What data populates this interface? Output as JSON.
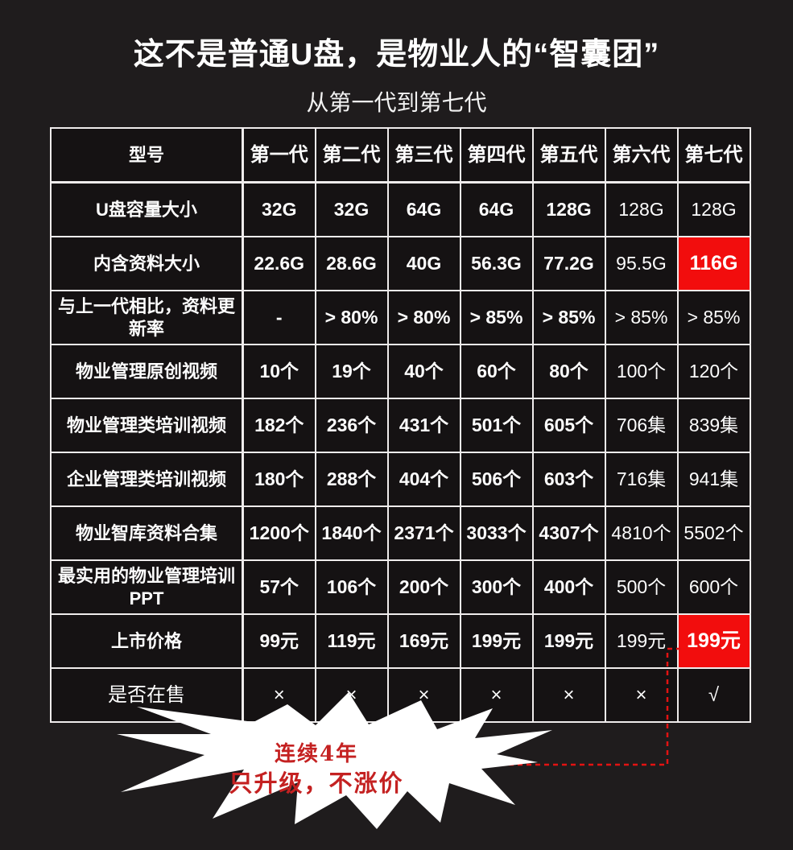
{
  "chart_data": {
    "type": "table",
    "title": "这不是普通U盘，是物业人的“智囊团”",
    "subtitle": "从第一代到第七代",
    "columns": [
      "型号",
      "第一代",
      "第二代",
      "第三代",
      "第四代",
      "第五代",
      "第六代",
      "第七代"
    ],
    "rows": [
      {
        "label": "U盘容量大小",
        "values": [
          "32G",
          "32G",
          "64G",
          "64G",
          "128G",
          "128G",
          "128G"
        ]
      },
      {
        "label": "内含资料大小",
        "values": [
          "22.6G",
          "28.6G",
          "40G",
          "56.3G",
          "77.2G",
          "95.5G",
          "116G"
        ],
        "highlight_col": 6
      },
      {
        "label": "与上一代相比，资料更新率",
        "values": [
          "-",
          "> 80%",
          "> 80%",
          "> 85%",
          "> 85%",
          "> 85%",
          "> 85%"
        ]
      },
      {
        "label": "物业管理原创视频",
        "values": [
          "10个",
          "19个",
          "40个",
          "60个",
          "80个",
          "100个",
          "120个"
        ]
      },
      {
        "label": "物业管理类培训视频",
        "values": [
          "182个",
          "236个",
          "431个",
          "501个",
          "605个",
          "706集",
          "839集"
        ]
      },
      {
        "label": "企业管理类培训视频",
        "values": [
          "180个",
          "288个",
          "404个",
          "506个",
          "603个",
          "716集",
          "941集"
        ]
      },
      {
        "label": "物业智库资料合集",
        "values": [
          "1200个",
          "1840个",
          "2371个",
          "3033个",
          "4307个",
          "4810个",
          "5502个"
        ]
      },
      {
        "label": "最实用的物业管理培训PPT",
        "values": [
          "57个",
          "106个",
          "200个",
          "300个",
          "400个",
          "500个",
          "600个"
        ]
      },
      {
        "label": "上市价格",
        "values": [
          "99元",
          "119元",
          "169元",
          "199元",
          "199元",
          "199元",
          "199元"
        ],
        "highlight_col": 6
      },
      {
        "label": "是否在售",
        "values": [
          "×",
          "×",
          "×",
          "×",
          "×",
          "×",
          "√"
        ]
      }
    ],
    "annotations": {
      "burst_line1": "连续4年",
      "burst_line2": "只升级，不涨价"
    },
    "colors": {
      "highlight_red": "#f20d0d",
      "burst_text_red": "#c42121",
      "dashed_line_red": "#e31212",
      "background": "#1f1c1d",
      "cell_background": "#151213",
      "border": "#efecec"
    },
    "layout": {
      "grid": "on",
      "highlighted_cells": [
        "内含资料大小/第七代",
        "上市价格/第七代"
      ]
    }
  }
}
